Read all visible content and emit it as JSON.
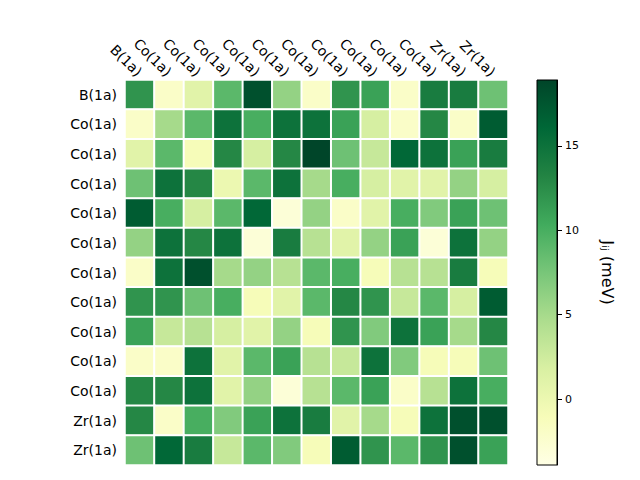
{
  "chart_data": {
    "type": "heatmap",
    "x_categories": [
      "B(1a)",
      "Co(1a)",
      "Co(1a)",
      "Co(1a)",
      "Co(1a)",
      "Co(1a)",
      "Co(1a)",
      "Co(1a)",
      "Co(1a)",
      "Co(1a)",
      "Co(1a)",
      "Zr(1a)",
      "Zr(1a)"
    ],
    "y_categories": [
      "B(1a)",
      "Co(1a)",
      "Co(1a)",
      "Co(1a)",
      "Co(1a)",
      "Co(1a)",
      "Co(1a)",
      "Co(1a)",
      "Co(1a)",
      "Co(1a)",
      "Co(1a)",
      "Zr(1a)",
      "Zr(1a)"
    ],
    "values": [
      [
        12,
        -2,
        1,
        9,
        18,
        6,
        -2,
        12,
        11,
        -2,
        14,
        14,
        8
      ],
      [
        -2,
        5,
        9,
        15,
        10,
        15,
        15,
        11,
        2,
        -2,
        13,
        -2,
        17
      ],
      [
        1,
        9,
        -1,
        13,
        2,
        13,
        19,
        8,
        3,
        16,
        15,
        11,
        14
      ],
      [
        8,
        15,
        13,
        0,
        9,
        15,
        5,
        10,
        2,
        1,
        1,
        6,
        2
      ],
      [
        17,
        10,
        2,
        9,
        16,
        -3,
        6,
        -2,
        1,
        10,
        7,
        11,
        8
      ],
      [
        6,
        15,
        13,
        15,
        -3,
        14,
        4,
        1,
        6,
        11,
        -3,
        15,
        6
      ],
      [
        -2,
        15,
        18,
        5,
        6,
        4,
        9,
        10,
        -1,
        4,
        4,
        14,
        -1
      ],
      [
        12,
        12,
        8,
        10,
        -1,
        1,
        9,
        13,
        12,
        3,
        9,
        2,
        17
      ],
      [
        11,
        3,
        4,
        2,
        1,
        6,
        -1,
        12,
        7,
        15,
        11,
        5,
        13
      ],
      [
        -2,
        -2,
        15,
        1,
        9,
        11,
        4,
        3,
        15,
        7,
        -1,
        -1,
        8
      ],
      [
        13,
        13,
        15,
        1,
        6,
        -3,
        4,
        9,
        11,
        -2,
        4,
        15,
        10
      ],
      [
        13,
        -2,
        10,
        7,
        11,
        15,
        14,
        1,
        5,
        -1,
        15,
        18,
        18
      ],
      [
        8,
        16,
        14,
        3,
        9,
        7,
        -1,
        17,
        12,
        9,
        12,
        18,
        11
      ]
    ],
    "color": "YlGn",
    "colorbar": {
      "range": [
        -3.9,
        18.9
      ],
      "ticks": [
        0,
        5,
        10,
        15
      ],
      "label": "Jᵢⱼ (meV)"
    }
  }
}
